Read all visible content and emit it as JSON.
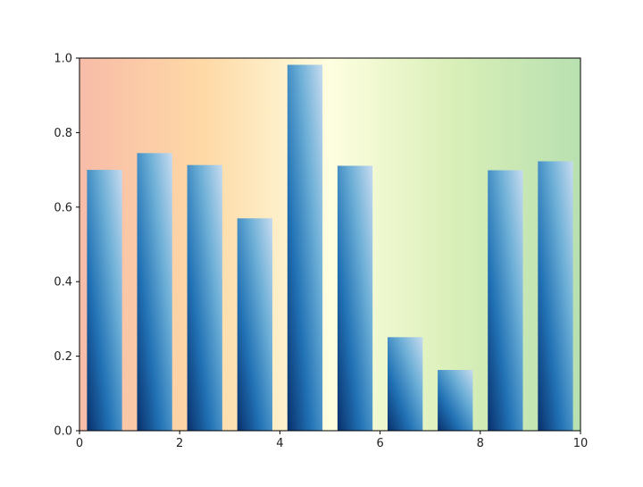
{
  "chart_data": {
    "type": "bar",
    "title": "",
    "xlabel": "",
    "ylabel": "",
    "x": [
      0.5,
      1.5,
      2.5,
      3.5,
      4.5,
      5.5,
      6.5,
      7.5,
      8.5,
      9.5
    ],
    "values": [
      0.7,
      0.745,
      0.713,
      0.57,
      0.982,
      0.711,
      0.251,
      0.163,
      0.699,
      0.723
    ],
    "bar_width": 0.7,
    "xlim": [
      0,
      10
    ],
    "ylim": [
      0,
      1
    ],
    "xticks": [
      "0",
      "2",
      "4",
      "6",
      "8",
      "10"
    ],
    "yticks": [
      "0.0",
      "0.2",
      "0.4",
      "0.6",
      "0.8",
      "1.0"
    ],
    "grid": false,
    "background_gradient": [
      "#f8bca8",
      "#fed9a6",
      "#fefee0",
      "#d9efb8",
      "#b8e0b0"
    ],
    "bar_gradient": [
      "#08306b",
      "#2171b5",
      "#6baed6",
      "#c6dbef"
    ]
  }
}
